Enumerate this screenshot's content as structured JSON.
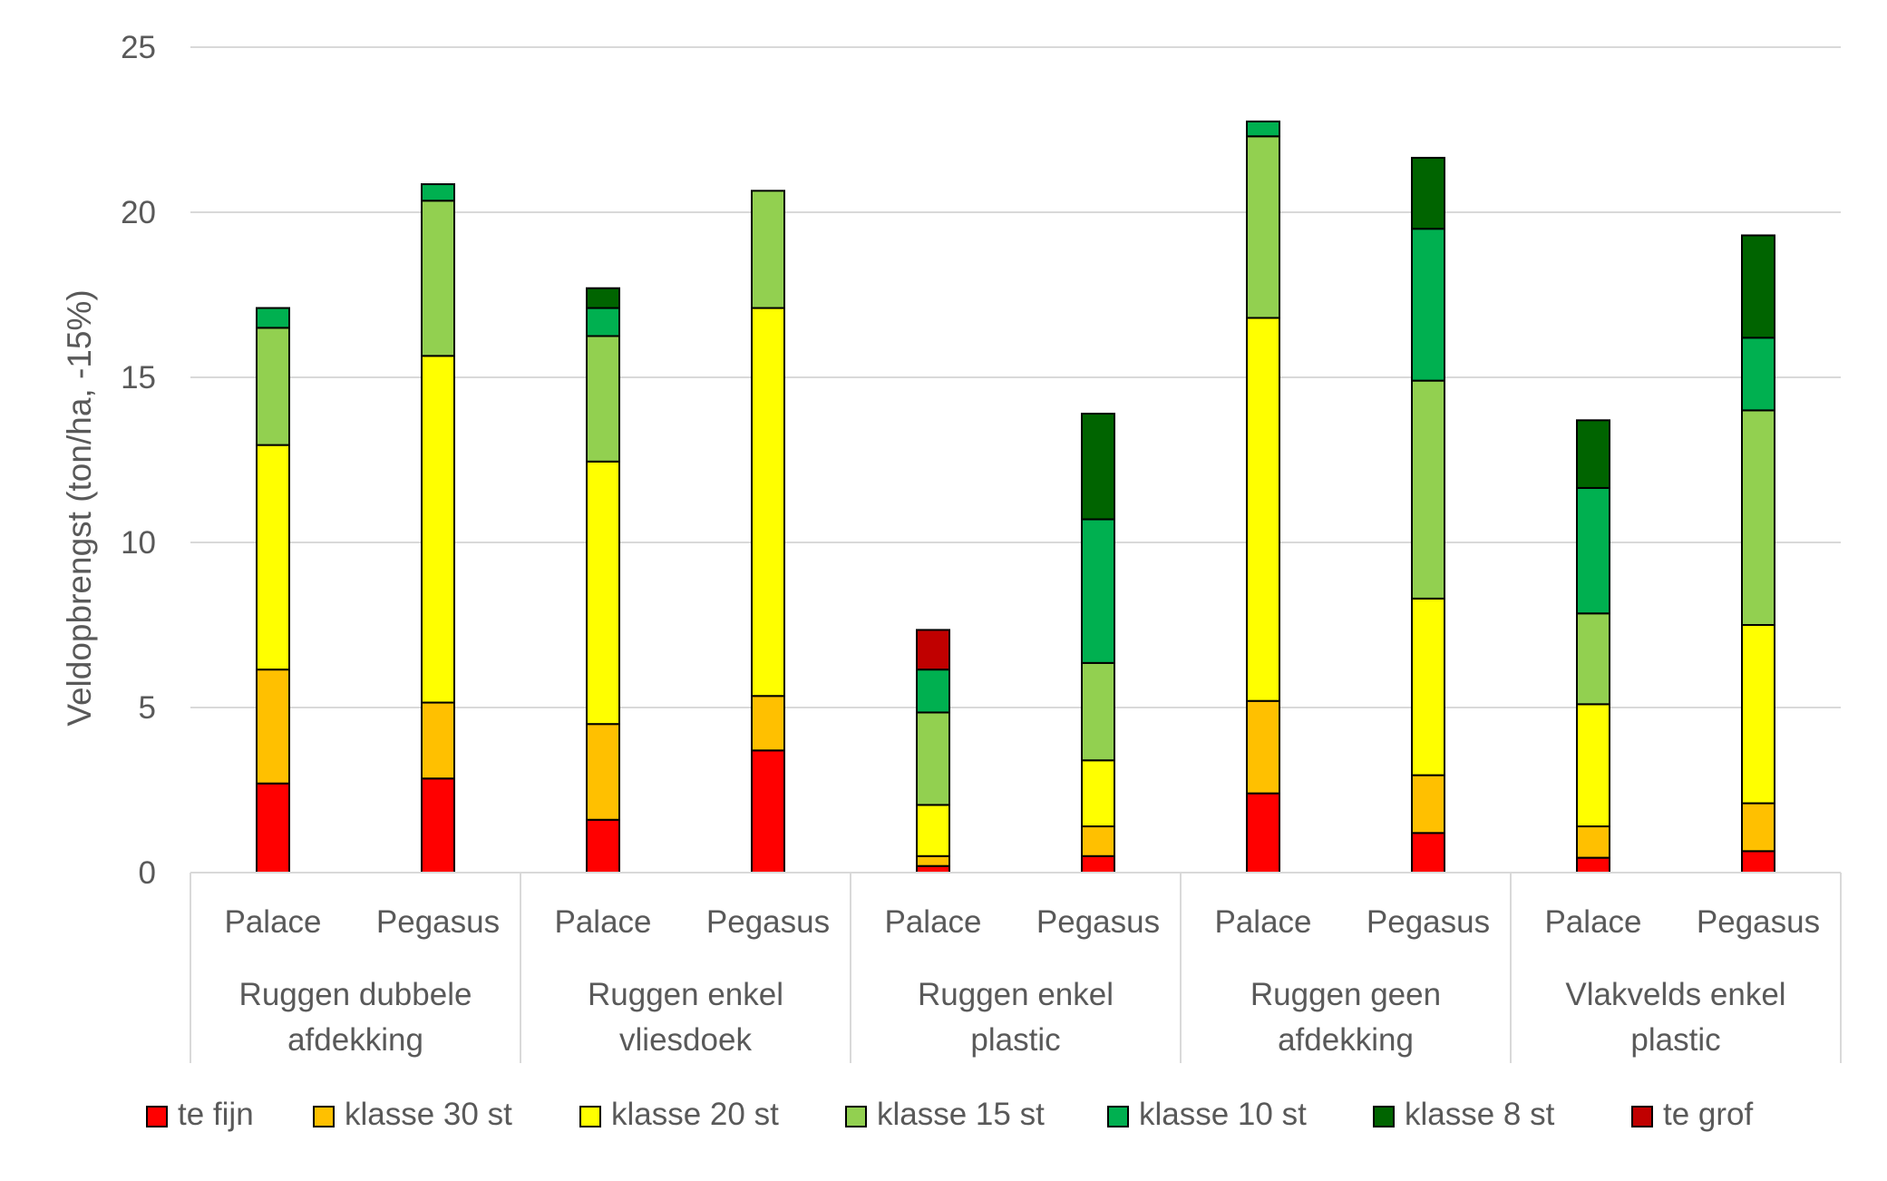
{
  "chart_data": {
    "type": "bar",
    "stacked": true,
    "ylabel": "Veldopbrengst (ton/ha, -15%)",
    "xlabel": "",
    "ylim": [
      0,
      25
    ],
    "yticks": [
      0,
      5,
      10,
      15,
      20,
      25
    ],
    "grid": true,
    "legend_position": "bottom",
    "groups": [
      {
        "label_lines": [
          "Ruggen dubbele",
          "afdekking"
        ],
        "categories": [
          "Palace",
          "Pegasus"
        ]
      },
      {
        "label_lines": [
          "Ruggen enkel",
          "vliesdoek"
        ],
        "categories": [
          "Palace",
          "Pegasus"
        ]
      },
      {
        "label_lines": [
          "Ruggen enkel",
          "plastic"
        ],
        "categories": [
          "Palace",
          "Pegasus"
        ]
      },
      {
        "label_lines": [
          "Ruggen geen",
          "afdekking"
        ],
        "categories": [
          "Palace",
          "Pegasus"
        ]
      },
      {
        "label_lines": [
          "Vlakvelds enkel",
          "plastic"
        ],
        "categories": [
          "Palace",
          "Pegasus"
        ]
      }
    ],
    "series": [
      {
        "name": "te fijn",
        "color": "#ff0000",
        "values": [
          2.7,
          2.85,
          1.6,
          3.7,
          0.2,
          0.5,
          2.4,
          1.2,
          0.45,
          0.65
        ]
      },
      {
        "name": "klasse 30 st",
        "color": "#ffc000",
        "values": [
          3.45,
          2.3,
          2.9,
          1.65,
          0.3,
          0.9,
          2.8,
          1.75,
          0.95,
          1.45
        ]
      },
      {
        "name": "klasse 20 st",
        "color": "#ffff00",
        "values": [
          6.8,
          10.5,
          7.95,
          11.75,
          1.55,
          2.0,
          11.6,
          5.35,
          3.7,
          5.4
        ]
      },
      {
        "name": "klasse 15 st",
        "color": "#92d050",
        "values": [
          3.55,
          4.7,
          3.8,
          3.55,
          2.8,
          2.95,
          5.5,
          6.6,
          2.75,
          6.5
        ]
      },
      {
        "name": "klasse 10 st",
        "color": "#00b050",
        "values": [
          0.6,
          0.5,
          0.85,
          0,
          1.3,
          4.35,
          0.45,
          4.6,
          3.8,
          2.2
        ]
      },
      {
        "name": "klasse 8 st",
        "color": "#006400",
        "values": [
          0,
          0,
          0.6,
          0,
          0,
          3.2,
          0,
          2.15,
          2.05,
          3.1
        ]
      },
      {
        "name": "te grof",
        "color": "#c00000",
        "values": [
          0,
          0,
          0,
          0,
          1.2,
          0,
          0,
          0,
          0,
          0
        ]
      }
    ]
  }
}
